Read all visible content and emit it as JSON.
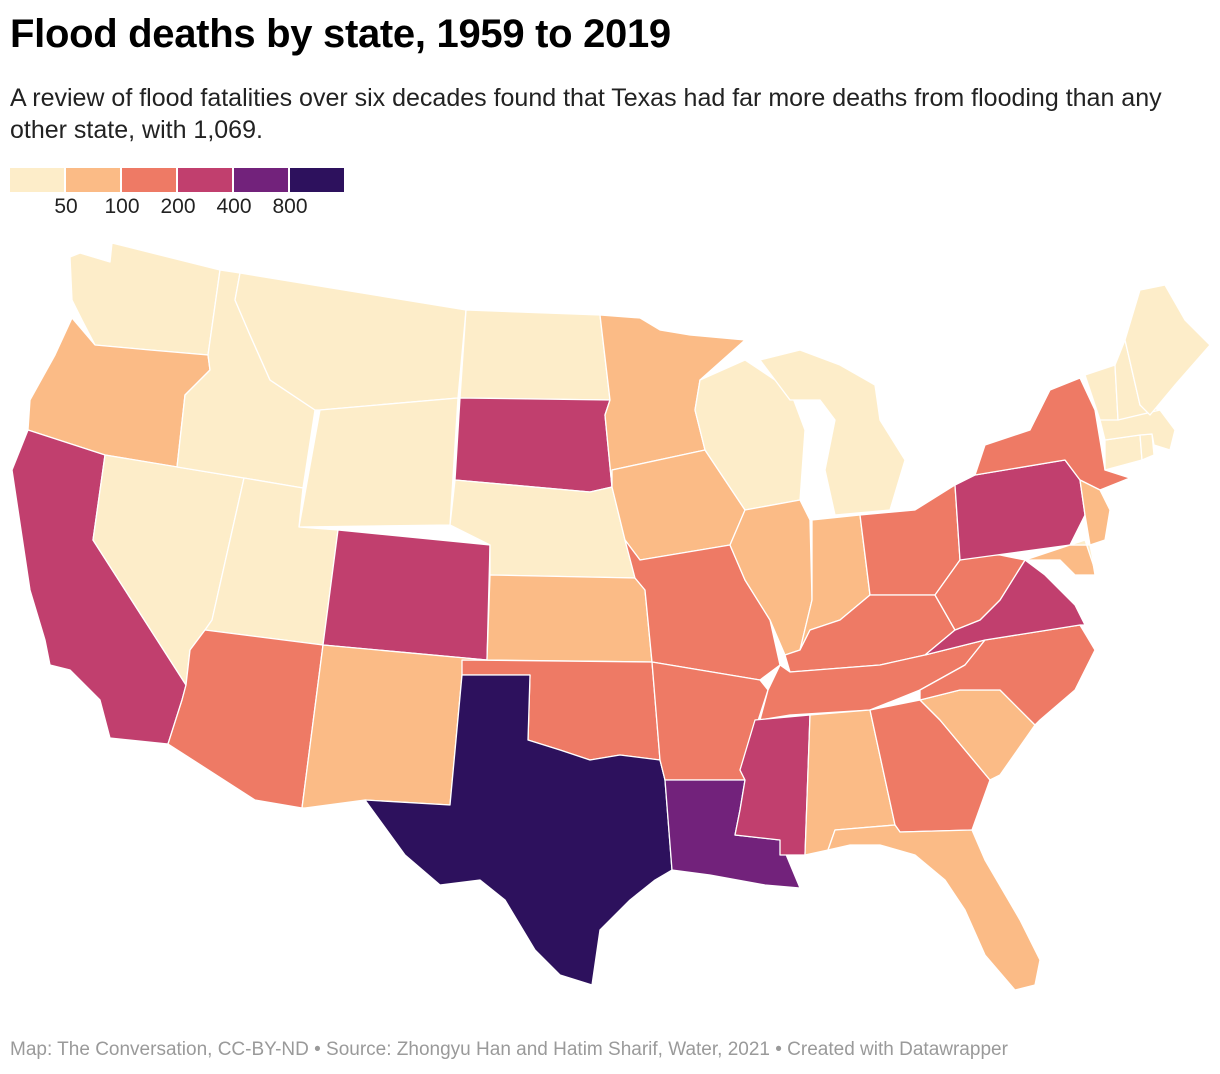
{
  "title": "Flood deaths by state, 1959 to 2019",
  "subtitle": "A review of flood fatalities over six decades found that Texas had far more deaths from flooding than any other state, with 1,069.",
  "legend": {
    "colors": [
      "#fdedc9",
      "#fbbb86",
      "#ee7a65",
      "#c13f6e",
      "#72227b",
      "#2d115d"
    ],
    "ticks": [
      "50",
      "100",
      "200",
      "400",
      "800"
    ]
  },
  "palette": {
    "b1": "#fdedc9",
    "b2": "#fbbb86",
    "b3": "#ee7a65",
    "b4": "#c13f6e",
    "b5": "#72227b",
    "b6": "#2d115d"
  },
  "states": {
    "WA": "b1",
    "OR": "b2",
    "CA": "b4",
    "NV": "b1",
    "ID": "b1",
    "MT": "b1",
    "WY": "b1",
    "UT": "b1",
    "AZ": "b3",
    "CO": "b4",
    "NM": "b2",
    "ND": "b1",
    "SD": "b4",
    "NE": "b1",
    "KS": "b2",
    "OK": "b3",
    "TX": "b6",
    "MN": "b2",
    "IA": "b2",
    "MO": "b3",
    "AR": "b3",
    "LA": "b5",
    "WI": "b1",
    "IL": "b2",
    "MI": "b1",
    "IN": "b2",
    "OH": "b3",
    "KY": "b3",
    "TN": "b3",
    "MS": "b4",
    "AL": "b2",
    "GA": "b3",
    "FL": "b2",
    "SC": "b2",
    "NC": "b3",
    "VA": "b4",
    "WV": "b3",
    "MD": "b2",
    "DE": "b1",
    "NJ": "b2",
    "PA": "b4",
    "NY": "b3",
    "CT": "b1",
    "RI": "b1",
    "MA": "b1",
    "VT": "b1",
    "NH": "b1",
    "ME": "b1"
  },
  "footer": "Map: The Conversation, CC-BY-ND • Source: Zhongyu Han and Hatim Sharif, Water, 2021 • Created with Datawrapper"
}
